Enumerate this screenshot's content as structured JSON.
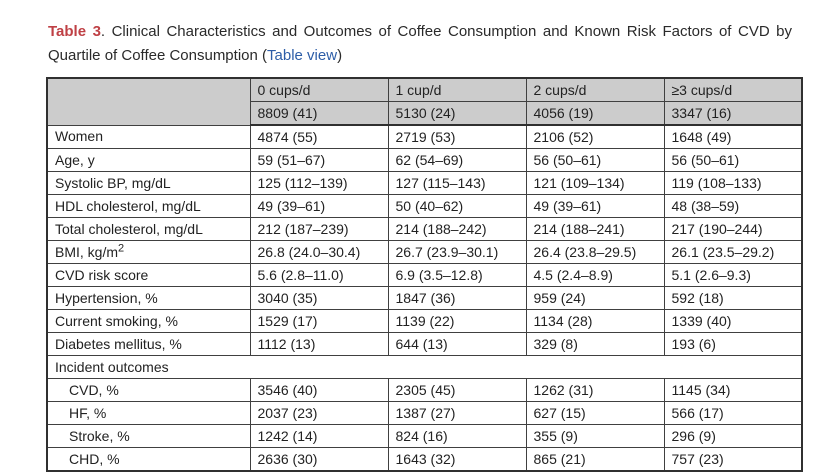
{
  "caption": {
    "label": "Table 3",
    "body": ". Clinical Characteristics and Outcomes of Coffee Consumption and Known Risk Factors of CVD by Quartile of Coffee Consumption ",
    "link_open": "(",
    "link_text": "Table view",
    "link_close": ")"
  },
  "colors": {
    "caption_label_red": "#bf4045",
    "link_blue": "#2d5da7",
    "header_bg": "#cccccc",
    "border": "#404040",
    "text": "#222222"
  },
  "chart_data": {
    "type": "table",
    "title": "Table 3. Clinical Characteristics and Outcomes of Coffee Consumption and Known Risk Factors of CVD by Quartile of Coffee Consumption",
    "column_headers": [
      "0 cups/d",
      "1 cup/d",
      "2 cups/d",
      "≥3 cups/d"
    ],
    "column_subheaders": [
      "8809 (41)",
      "5130 (24)",
      "4056 (19)",
      "3347 (16)"
    ],
    "rows": [
      {
        "label": "Women",
        "values": [
          "4874 (55)",
          "2719 (53)",
          "2106 (52)",
          "1648 (49)"
        ]
      },
      {
        "label": "Age, y",
        "values": [
          "59 (51–67)",
          "62 (54–69)",
          "56 (50–61)",
          "56 (50–61)"
        ]
      },
      {
        "label": "Systolic BP, mg/dL",
        "values": [
          "125 (112–139)",
          "127 (115–143)",
          "121 (109–134)",
          "119 (108–133)"
        ]
      },
      {
        "label": "HDL cholesterol, mg/dL",
        "values": [
          "49 (39–61)",
          "50 (40–62)",
          "49 (39–61)",
          "48 (38–59)"
        ]
      },
      {
        "label": "Total cholesterol, mg/dL",
        "values": [
          "212 (187–239)",
          "214 (188–242)",
          "214 (188–241)",
          "217 (190–244)"
        ]
      },
      {
        "label": "BMI, kg/m",
        "sup": "2",
        "values": [
          "26.8 (24.0–30.4)",
          "26.7 (23.9–30.1)",
          "26.4 (23.8–29.5)",
          "26.1 (23.5–29.2)"
        ]
      },
      {
        "label": "CVD risk score",
        "values": [
          "5.6 (2.8–11.0)",
          "6.9 (3.5–12.8)",
          "4.5 (2.4–8.9)",
          "5.1 (2.6–9.3)"
        ]
      },
      {
        "label": "Hypertension, %",
        "values": [
          "3040 (35)",
          "1847 (36)",
          "959 (24)",
          "592 (18)"
        ]
      },
      {
        "label": "Current smoking, %",
        "values": [
          "1529 (17)",
          "1139 (22)",
          "1134 (28)",
          "1339 (40)"
        ]
      },
      {
        "label": "Diabetes mellitus, %",
        "values": [
          "1112 (13)",
          "644 (13)",
          "329 (8)",
          "193 (6)"
        ]
      },
      {
        "label": "Incident outcomes",
        "section": true
      },
      {
        "label": "CVD, %",
        "indent": true,
        "values": [
          "3546 (40)",
          "2305 (45)",
          "1262 (31)",
          "1145 (34)"
        ]
      },
      {
        "label": "HF, %",
        "indent": true,
        "values": [
          "2037 (23)",
          "1387 (27)",
          "627 (15)",
          "566 (17)"
        ]
      },
      {
        "label": "Stroke, %",
        "indent": true,
        "values": [
          "1242 (14)",
          "824 (16)",
          "355 (9)",
          "296 (9)"
        ]
      },
      {
        "label": "CHD, %",
        "indent": true,
        "values": [
          "2636 (30)",
          "1643 (32)",
          "865 (21)",
          "757 (23)"
        ]
      }
    ]
  }
}
